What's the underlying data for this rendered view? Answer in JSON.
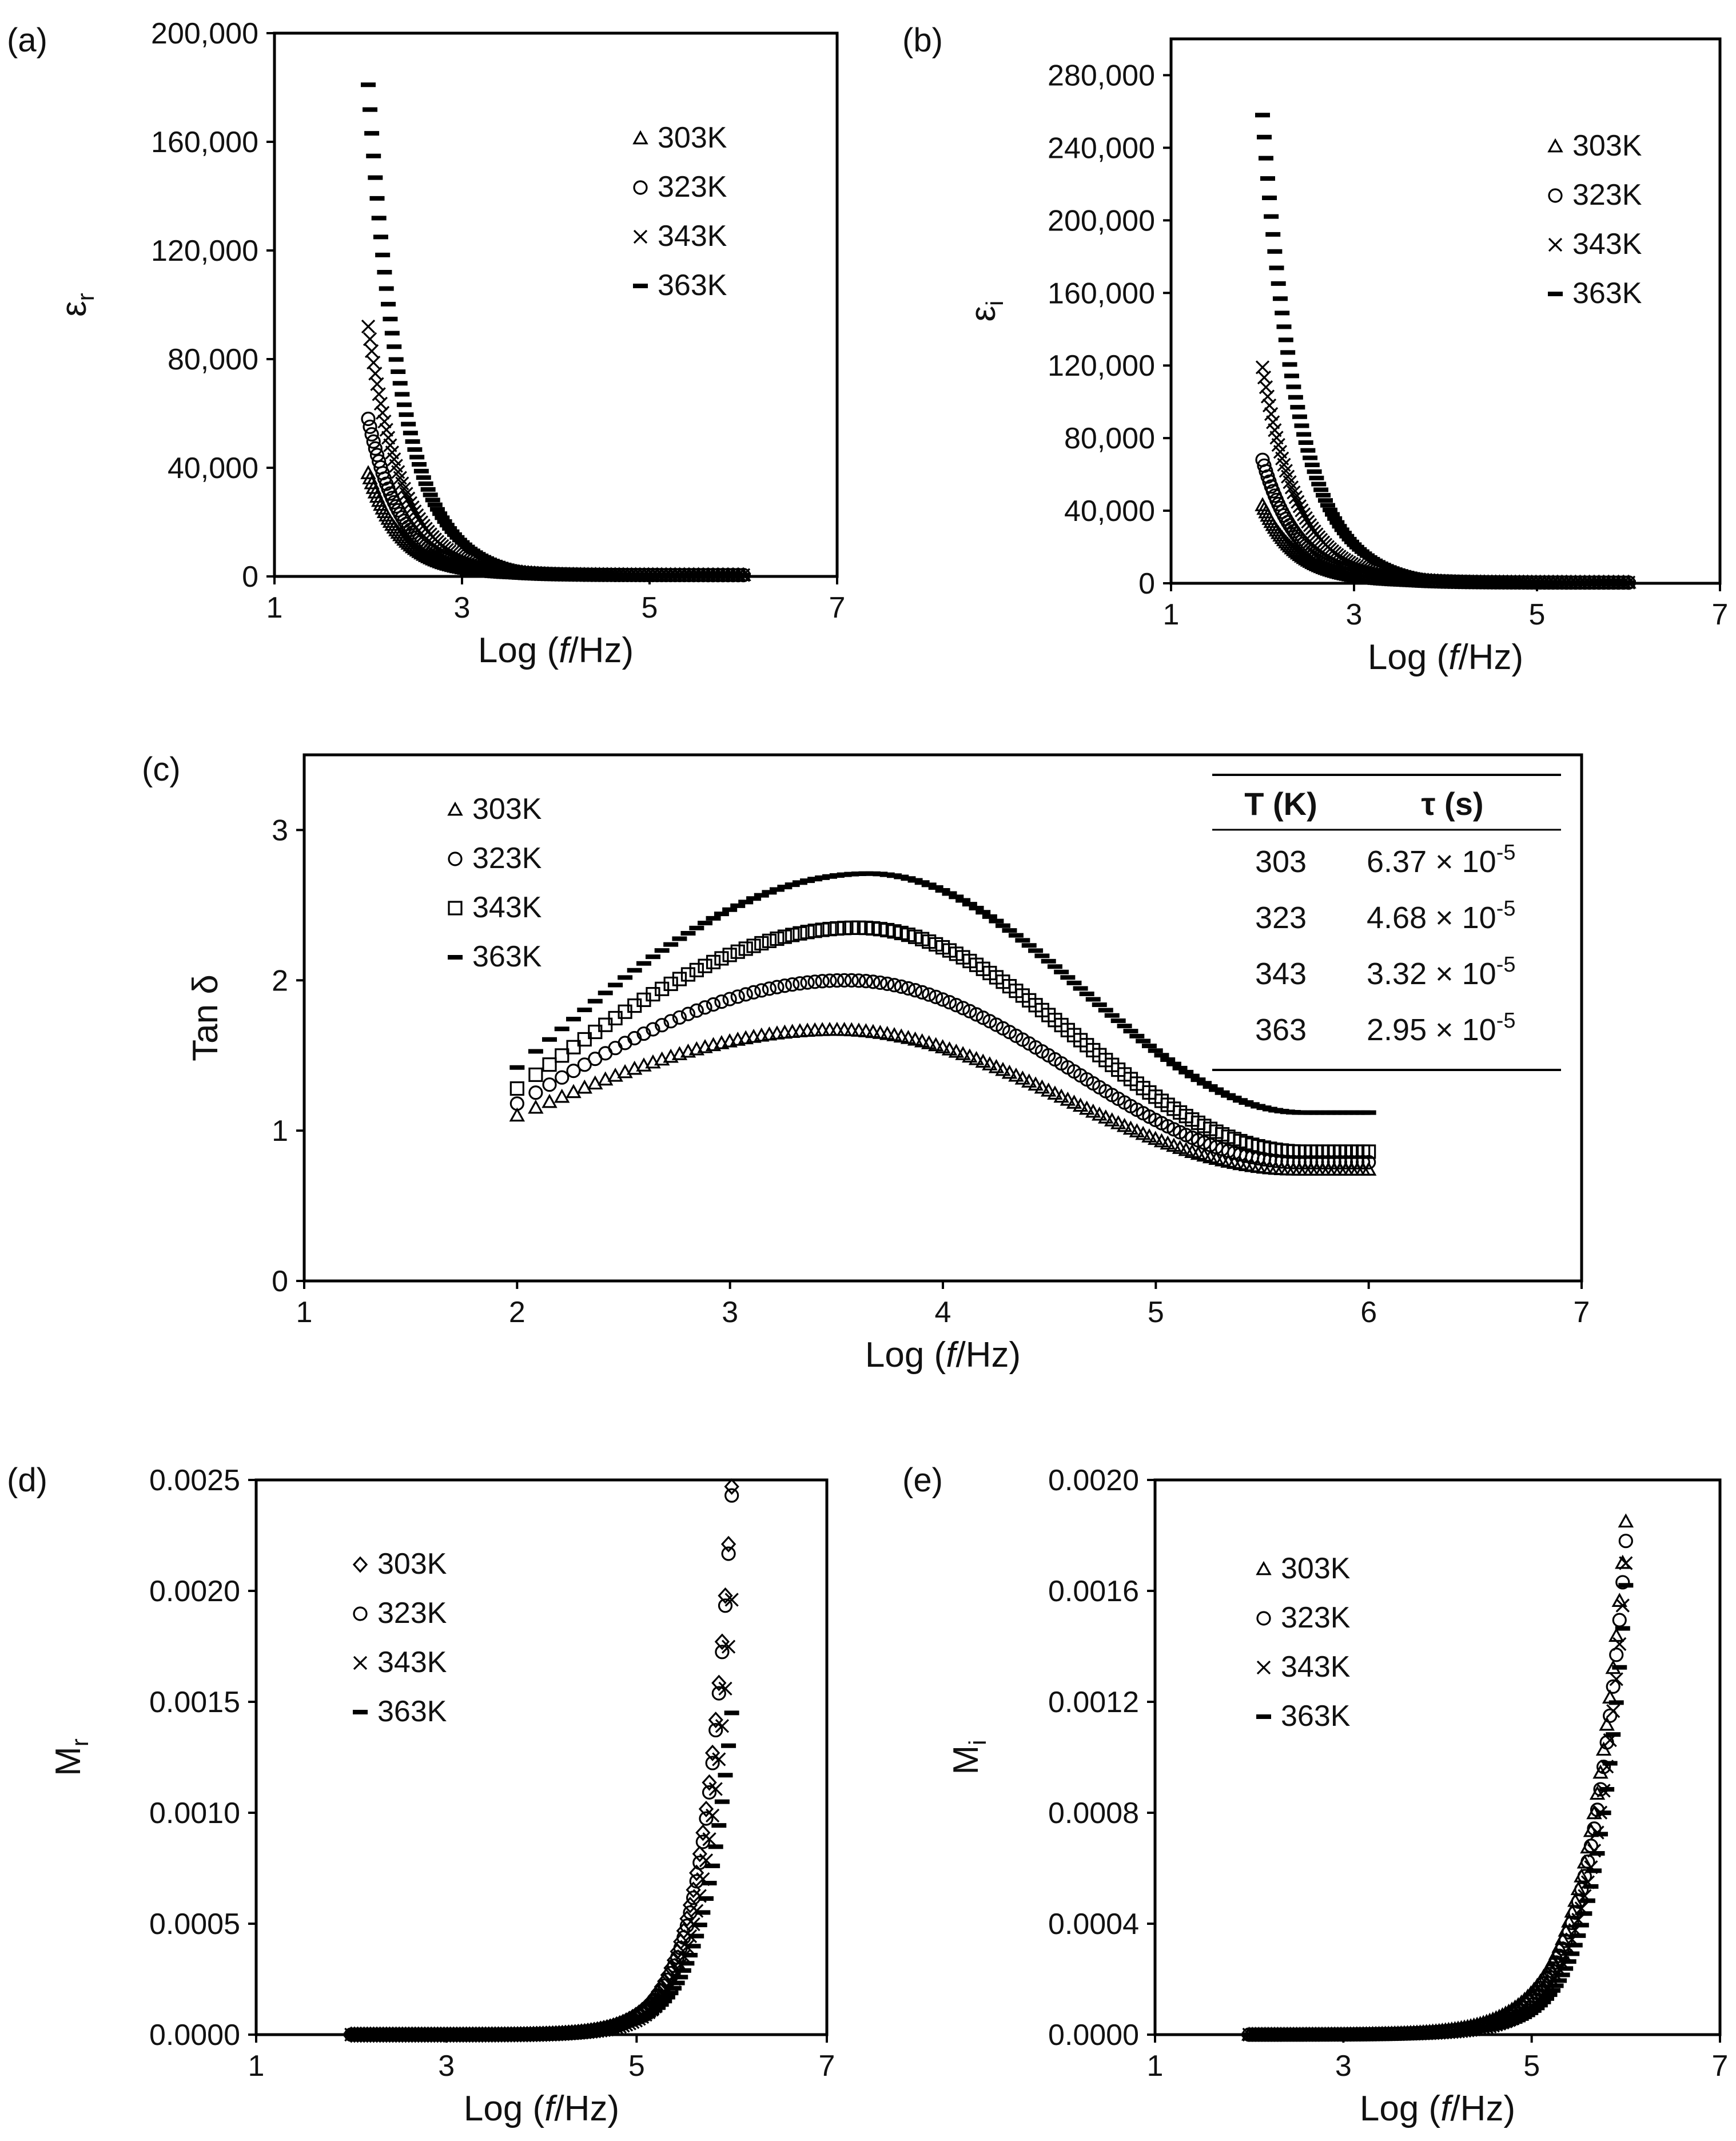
{
  "chart_data": [
    {
      "id": "a",
      "panel_label": "(a)",
      "type": "scatter",
      "title": "",
      "xlabel_parts": [
        "Log (",
        "f",
        "/Hz)"
      ],
      "ylabel_base": "ε",
      "ylabel_sub": "r",
      "xlim": [
        1,
        7
      ],
      "ylim": [
        0,
        200000
      ],
      "xticks": [
        1,
        3,
        5,
        7
      ],
      "yticks": [
        0,
        40000,
        80000,
        120000,
        160000,
        200000
      ],
      "xtick_labels": [
        "1",
        "3",
        "5",
        "7"
      ],
      "ytick_labels": [
        "0",
        "40,000",
        "80,000",
        "120,000",
        "160,000",
        "200,000"
      ],
      "legend_position": "upper-right",
      "series": [
        {
          "name": "303K",
          "marker": "triangle",
          "curve": {
            "type": "power",
            "x0": 2,
            "y0": 38000,
            "end": 500,
            "p": 2.3,
            "xmax": 6,
            "n": 120
          }
        },
        {
          "name": "323K",
          "marker": "circle",
          "curve": {
            "type": "power",
            "x0": 2,
            "y0": 58000,
            "end": 500,
            "p": 2.3,
            "xmax": 6,
            "n": 120
          }
        },
        {
          "name": "343K",
          "marker": "x",
          "curve": {
            "type": "power",
            "x0": 2,
            "y0": 92000,
            "end": 500,
            "p": 2.3,
            "xmax": 6,
            "n": 120
          }
        },
        {
          "name": "363K",
          "marker": "dash",
          "curve": {
            "type": "power",
            "x0": 2,
            "y0": 181000,
            "end": 500,
            "p": 2.3,
            "xmax": 6,
            "n": 120
          }
        }
      ]
    },
    {
      "id": "b",
      "panel_label": "(b)",
      "type": "scatter",
      "title": "",
      "xlabel_parts": [
        "Log (",
        "f",
        "/Hz)"
      ],
      "ylabel_base": "ε",
      "ylabel_sub": "i",
      "xlim": [
        1,
        7
      ],
      "ylim": [
        0,
        300000
      ],
      "xticks": [
        1,
        3,
        5,
        7
      ],
      "yticks": [
        0,
        40000,
        80000,
        120000,
        160000,
        200000,
        240000,
        280000
      ],
      "xtick_labels": [
        "1",
        "3",
        "5",
        "7"
      ],
      "ytick_labels": [
        "0",
        "40,000",
        "80,000",
        "120,000",
        "160,000",
        "200,000",
        "240,000",
        "280,000"
      ],
      "legend_position": "upper-right",
      "series": [
        {
          "name": "303K",
          "marker": "triangle",
          "curve": {
            "type": "power",
            "x0": 2,
            "y0": 43000,
            "end": 400,
            "p": 2.1,
            "xmax": 6,
            "n": 120
          }
        },
        {
          "name": "323K",
          "marker": "circle",
          "curve": {
            "type": "power",
            "x0": 2,
            "y0": 68000,
            "end": 400,
            "p": 2.1,
            "xmax": 6,
            "n": 120
          }
        },
        {
          "name": "343K",
          "marker": "x",
          "curve": {
            "type": "power",
            "x0": 2,
            "y0": 119000,
            "end": 400,
            "p": 2.1,
            "xmax": 6,
            "n": 120
          }
        },
        {
          "name": "363K",
          "marker": "dash",
          "curve": {
            "type": "power",
            "x0": 2,
            "y0": 258000,
            "end": 400,
            "p": 2.1,
            "xmax": 6,
            "n": 120
          }
        }
      ]
    },
    {
      "id": "c",
      "panel_label": "(c)",
      "type": "scatter",
      "title": "",
      "xlabel_parts": [
        "Log (",
        "f",
        "/Hz)"
      ],
      "ylabel_base": "Tan δ",
      "ylabel_sub": "",
      "xlim": [
        1,
        7
      ],
      "ylim": [
        0,
        3.5
      ],
      "xticks": [
        1,
        2,
        3,
        4,
        5,
        6,
        7
      ],
      "yticks": [
        0,
        1,
        2,
        3
      ],
      "xtick_labels": [
        "1",
        "2",
        "3",
        "4",
        "5",
        "6",
        "7"
      ],
      "ytick_labels": [
        "0",
        "1",
        "2",
        "3"
      ],
      "legend_position": "upper-left",
      "series": [
        {
          "name": "303K",
          "marker": "triangle",
          "curve": {
            "type": "peak",
            "y0": 1.1,
            "peak": 1.67,
            "xpk": 3.5,
            "end": 0.74,
            "xmax": 6,
            "n": 120
          }
        },
        {
          "name": "323K",
          "marker": "circle",
          "curve": {
            "type": "peak",
            "y0": 1.18,
            "peak": 2.0,
            "xpk": 3.55,
            "end": 0.79,
            "xmax": 6,
            "n": 120
          }
        },
        {
          "name": "343K",
          "marker": "square",
          "curve": {
            "type": "peak",
            "y0": 1.28,
            "peak": 2.35,
            "xpk": 3.6,
            "end": 0.86,
            "xmax": 6,
            "n": 120
          }
        },
        {
          "name": "363K",
          "marker": "dash",
          "curve": {
            "type": "peak",
            "y0": 1.42,
            "peak": 2.71,
            "xpk": 3.65,
            "end": 1.12,
            "xmax": 6,
            "n": 120
          }
        }
      ],
      "table": {
        "headers": [
          "T (K)",
          "τ (s)"
        ],
        "rows": [
          {
            "T": "303",
            "tau_mant": "6.37",
            "tau_exp": "-5"
          },
          {
            "T": "323",
            "tau_mant": "4.68",
            "tau_exp": "-5"
          },
          {
            "T": "343",
            "tau_mant": "3.32",
            "tau_exp": "-5"
          },
          {
            "T": "363",
            "tau_mant": "2.95",
            "tau_exp": "-5"
          }
        ]
      }
    },
    {
      "id": "d",
      "panel_label": "(d)",
      "type": "scatter",
      "title": "",
      "xlabel_parts": [
        "Log (",
        "f",
        "/Hz)"
      ],
      "ylabel_base": "M",
      "ylabel_sub": "r",
      "xlim": [
        1,
        7
      ],
      "ylim": [
        0,
        0.0025
      ],
      "xticks": [
        1,
        3,
        5,
        7
      ],
      "yticks": [
        0,
        0.0005,
        0.001,
        0.0015,
        0.002,
        0.0025
      ],
      "xtick_labels": [
        "1",
        "3",
        "5",
        "7"
      ],
      "ytick_labels": [
        "0.0000",
        "0.0005",
        "0.0010",
        "0.0015",
        "0.0020",
        "0.0025"
      ],
      "legend_position": "upper-left",
      "series": [
        {
          "name": "303K",
          "marker": "diamond",
          "curve": {
            "type": "rise",
            "x0": 2,
            "xmax": 6,
            "yend": 0.00247,
            "p": 3.3,
            "n": 120
          }
        },
        {
          "name": "323K",
          "marker": "circle",
          "curve": {
            "type": "rise",
            "x0": 2,
            "xmax": 6,
            "yend": 0.00243,
            "p": 3.4,
            "n": 120
          }
        },
        {
          "name": "343K",
          "marker": "x",
          "curve": {
            "type": "rise",
            "x0": 2,
            "xmax": 6,
            "yend": 0.00196,
            "p": 3.4,
            "n": 120
          }
        },
        {
          "name": "363K",
          "marker": "dash",
          "curve": {
            "type": "rise",
            "x0": 2,
            "xmax": 6,
            "yend": 0.00145,
            "p": 3.2,
            "n": 120
          }
        }
      ]
    },
    {
      "id": "e",
      "panel_label": "(e)",
      "type": "scatter",
      "title": "",
      "xlabel_parts": [
        "Log (",
        "f",
        "/Hz)"
      ],
      "ylabel_base": "M",
      "ylabel_sub": "i",
      "xlim": [
        1,
        7
      ],
      "ylim": [
        0,
        0.002
      ],
      "xticks": [
        1,
        3,
        5,
        7
      ],
      "yticks": [
        0,
        0.0004,
        0.0008,
        0.0012,
        0.0016,
        0.002
      ],
      "xtick_labels": [
        "1",
        "3",
        "5",
        "7"
      ],
      "ytick_labels": [
        "0.0000",
        "0.0004",
        "0.0008",
        "0.0012",
        "0.0016",
        "0.0020"
      ],
      "legend_position": "upper-left",
      "series": [
        {
          "name": "303K",
          "marker": "triangle-thin",
          "curve": {
            "type": "rise",
            "x0": 2,
            "xmax": 6,
            "yend": 0.00185,
            "p": 2.5,
            "n": 120
          }
        },
        {
          "name": "323K",
          "marker": "circle-thin",
          "curve": {
            "type": "rise",
            "x0": 2,
            "xmax": 6,
            "yend": 0.00178,
            "p": 2.6,
            "n": 120
          }
        },
        {
          "name": "343K",
          "marker": "x-thin",
          "curve": {
            "type": "rise",
            "x0": 2,
            "xmax": 6,
            "yend": 0.0017,
            "p": 2.8,
            "n": 120
          }
        },
        {
          "name": "363K",
          "marker": "dash",
          "curve": {
            "type": "rise",
            "x0": 2,
            "xmax": 6,
            "yend": 0.00162,
            "p": 3.0,
            "n": 120
          }
        }
      ]
    }
  ]
}
